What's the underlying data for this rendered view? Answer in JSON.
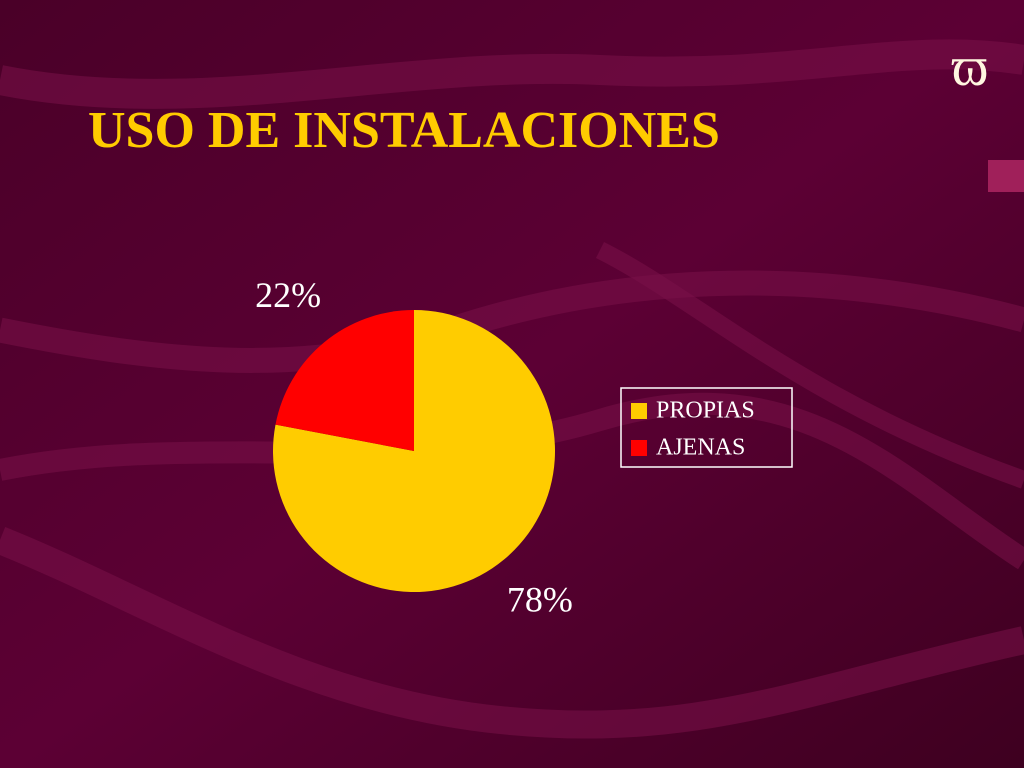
{
  "logo": "ϖ",
  "chart_data": {
    "type": "pie",
    "title": "USO DE INSTALACIONES",
    "categories": [
      "PROPIAS",
      "AJENAS"
    ],
    "values": [
      78,
      22
    ],
    "value_labels": [
      "78%",
      "22%"
    ],
    "colors": [
      "#ffcc00",
      "#ff0000"
    ],
    "legend": "right"
  }
}
